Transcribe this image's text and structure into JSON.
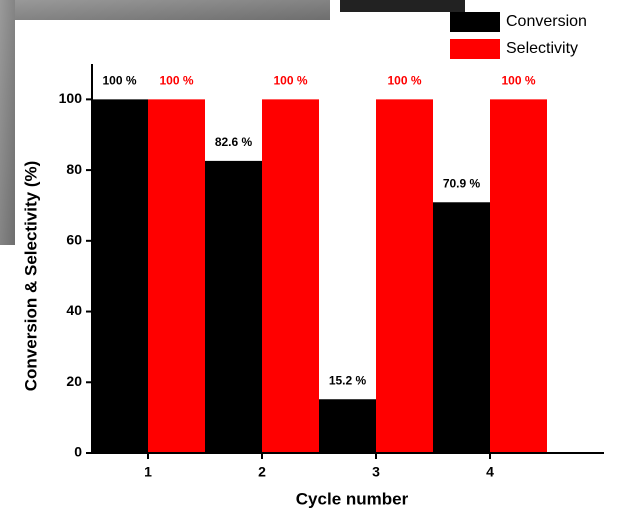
{
  "chart_data": {
    "type": "bar",
    "xlabel": "Cycle number",
    "ylabel": "Conversion & Selectivity (%)",
    "categories": [
      "1",
      "2",
      "3",
      "4"
    ],
    "series": [
      {
        "name": "Conversion",
        "color": "#000000",
        "values": [
          100,
          82.6,
          15.2,
          70.9
        ],
        "value_labels": [
          "100 %",
          "82.6 %",
          "15.2 %",
          "70.9 %"
        ]
      },
      {
        "name": "Selectivity",
        "color": "#ff0000",
        "values": [
          100,
          100,
          100,
          100
        ],
        "value_labels": [
          "100 %",
          "100 %",
          "100 %",
          "100 %"
        ]
      }
    ],
    "ylim": [
      0,
      110
    ],
    "yticks": [
      0,
      20,
      40,
      60,
      80,
      100
    ],
    "legend": "upper right"
  }
}
